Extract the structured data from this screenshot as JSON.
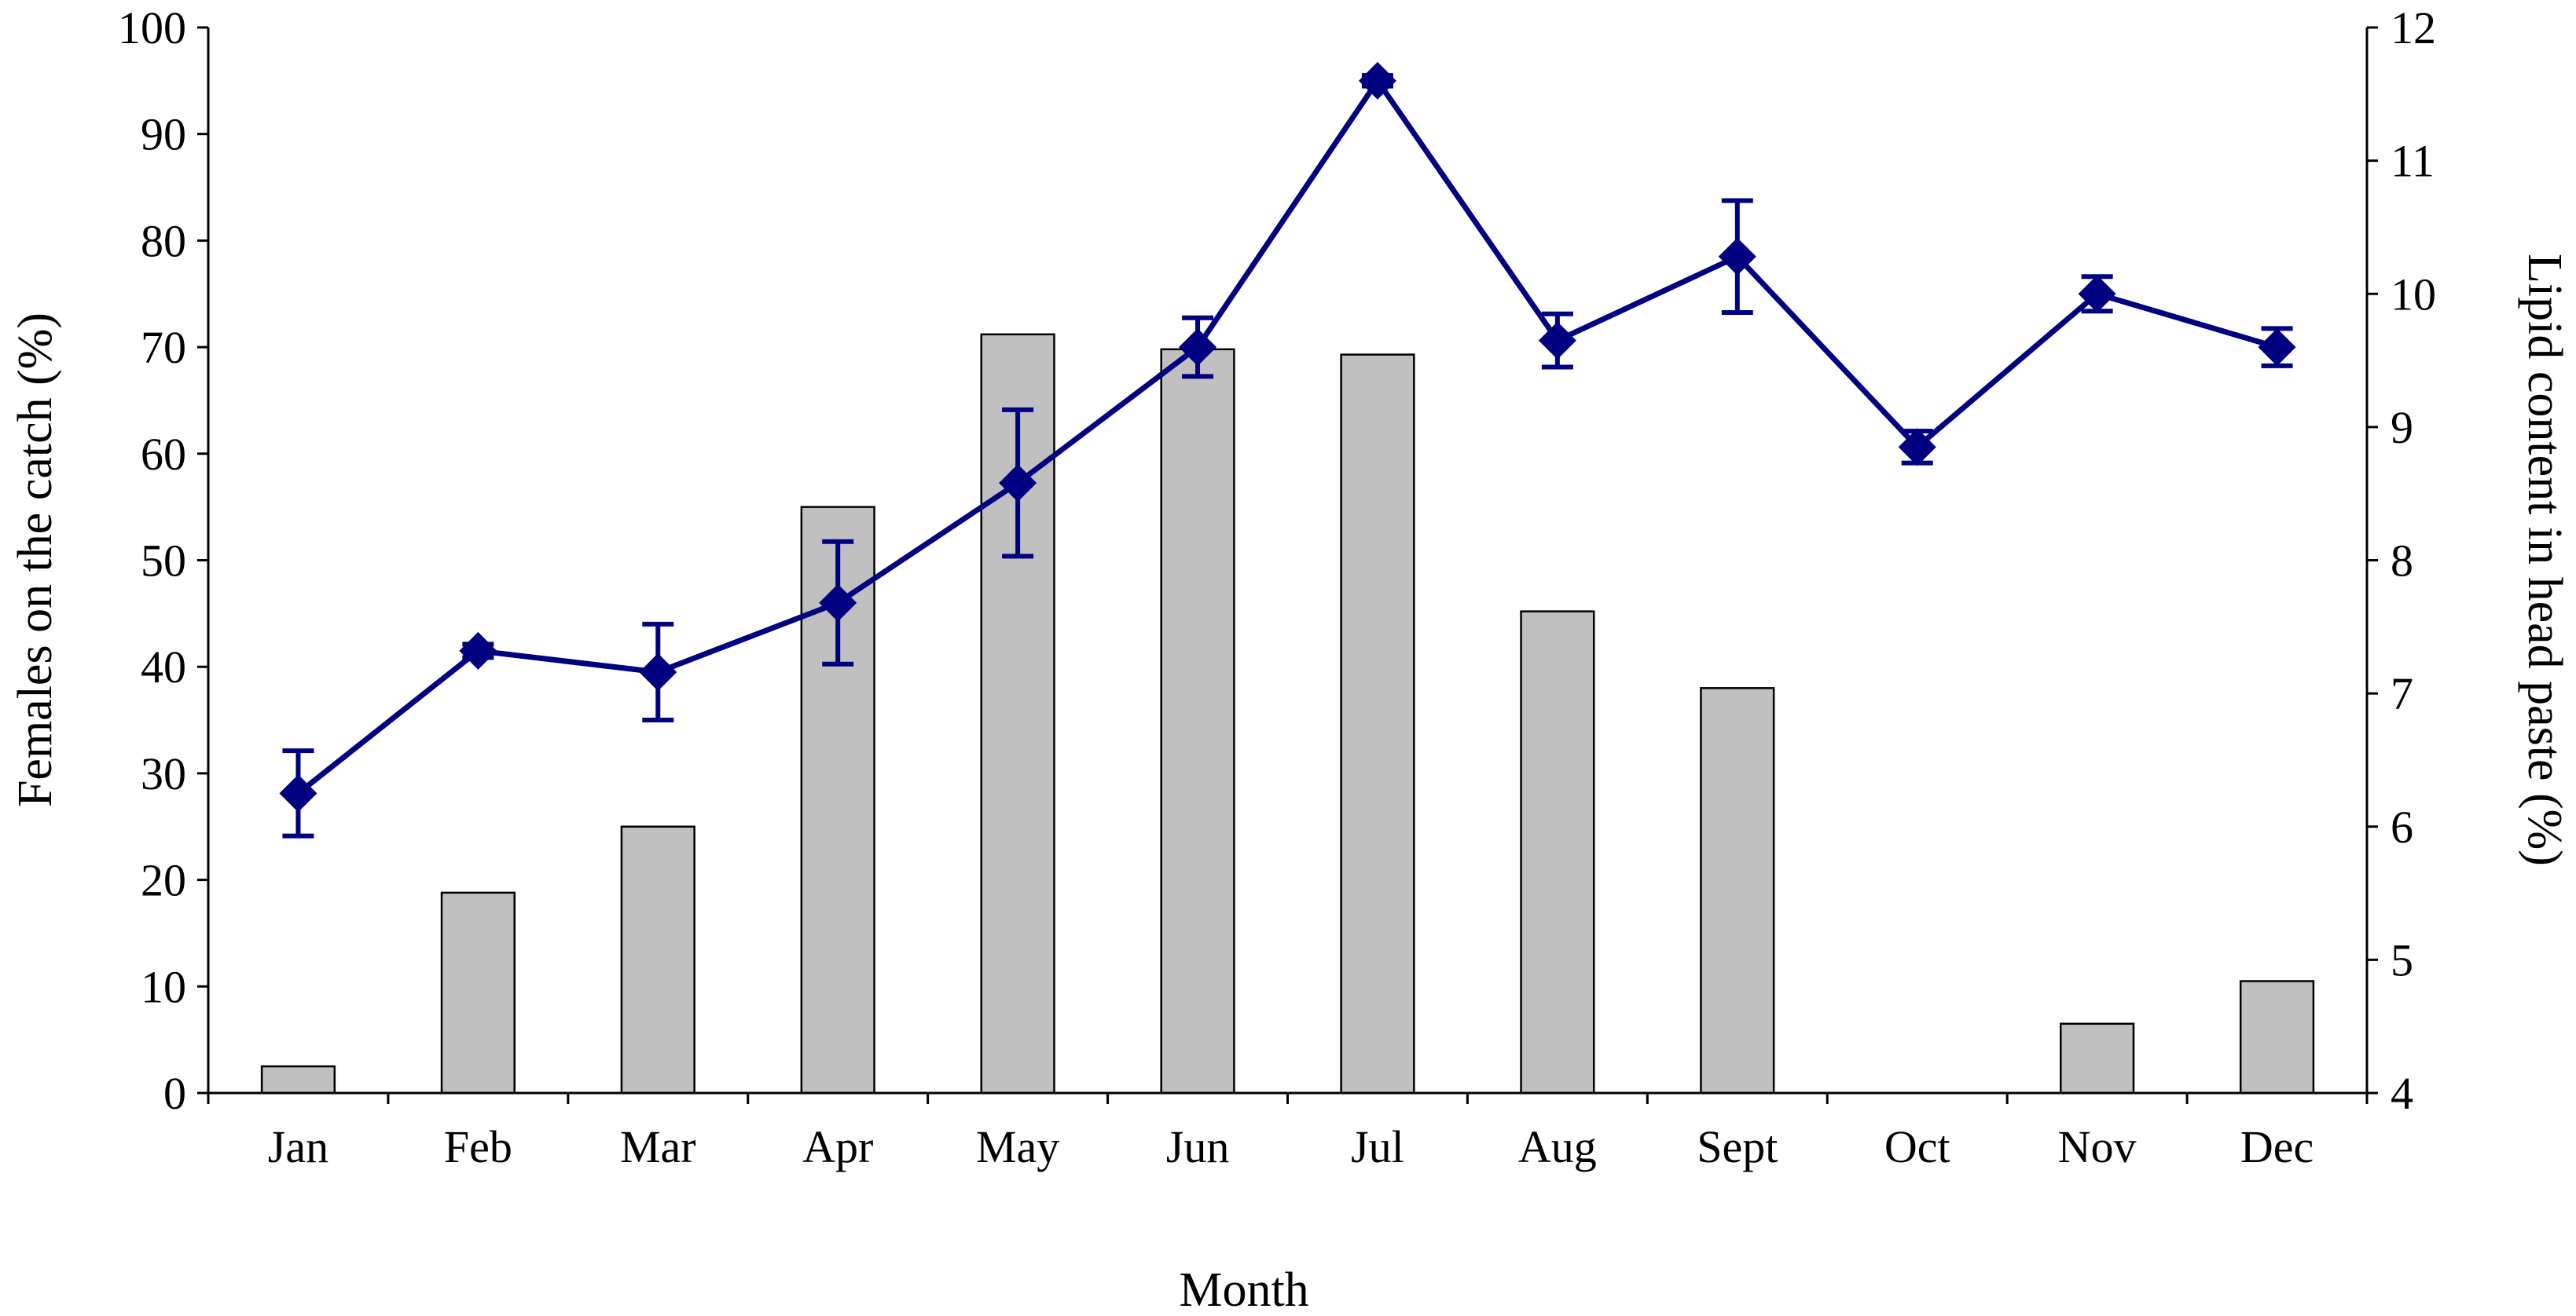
{
  "chart_data": {
    "type": "bar",
    "categories": [
      "Jan",
      "Feb",
      "Mar",
      "Apr",
      "May",
      "Jun",
      "Jul",
      "Aug",
      "Sept",
      "Oct",
      "Nov",
      "Dec"
    ],
    "xlabel": "Month",
    "ylabel": "Females on the catch (%)",
    "y2label": "Lipid content in head paste (%)",
    "ylim": [
      0,
      100
    ],
    "y2lim": [
      4,
      12
    ],
    "yticks": [
      0,
      10,
      20,
      30,
      40,
      50,
      60,
      70,
      80,
      90,
      100
    ],
    "y2ticks": [
      4,
      5,
      6,
      7,
      8,
      9,
      10,
      11,
      12
    ],
    "grid": false,
    "series": [
      {
        "type": "bar",
        "axis": "left",
        "values": [
          2.5,
          18.8,
          25,
          55,
          71.2,
          69.8,
          69.3,
          45.2,
          38,
          0,
          6.5,
          10.5
        ],
        "color": "#c0c0c0",
        "edge_color": "#000000"
      },
      {
        "type": "line",
        "axis": "right",
        "marker": "diamond",
        "values": [
          6.25,
          7.32,
          7.16,
          7.68,
          8.58,
          9.6,
          11.6,
          9.65,
          10.28,
          8.85,
          10.0,
          9.6
        ],
        "errors": [
          0.32,
          0.05,
          0.36,
          0.46,
          0.55,
          0.22,
          0.04,
          0.2,
          0.42,
          0.12,
          0.13,
          0.14
        ],
        "color": "#000080"
      }
    ]
  }
}
